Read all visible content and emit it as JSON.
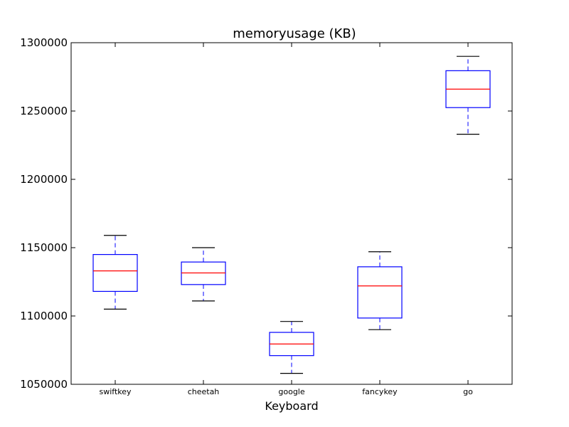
{
  "chart_data": {
    "type": "box",
    "title": "memoryusage (KB)",
    "xlabel": "Keyboard",
    "ylabel": "",
    "ylim": [
      1050000,
      1300000
    ],
    "yticks": [
      1050000,
      1100000,
      1150000,
      1200000,
      1250000,
      1300000
    ],
    "grid": false,
    "categories": [
      "swiftkey",
      "cheetah",
      "google",
      "fancykey",
      "go"
    ],
    "boxes": [
      {
        "category": "swiftkey",
        "whisker_low": 1105000,
        "q1": 1118000,
        "median": 1133000,
        "q3": 1145000,
        "whisker_high": 1159000
      },
      {
        "category": "cheetah",
        "whisker_low": 1111000,
        "q1": 1123000,
        "median": 1131500,
        "q3": 1139500,
        "whisker_high": 1150000
      },
      {
        "category": "google",
        "whisker_low": 1058000,
        "q1": 1071000,
        "median": 1079500,
        "q3": 1088000,
        "whisker_high": 1096000
      },
      {
        "category": "fancykey",
        "whisker_low": 1090000,
        "q1": 1098500,
        "median": 1122000,
        "q3": 1136000,
        "whisker_high": 1147000
      },
      {
        "category": "go",
        "whisker_low": 1233000,
        "q1": 1252500,
        "median": 1266000,
        "q3": 1279500,
        "whisker_high": 1290000
      }
    ],
    "colors": {
      "box": "#0000ff",
      "median": "#ff0000",
      "cap": "#000000"
    }
  }
}
